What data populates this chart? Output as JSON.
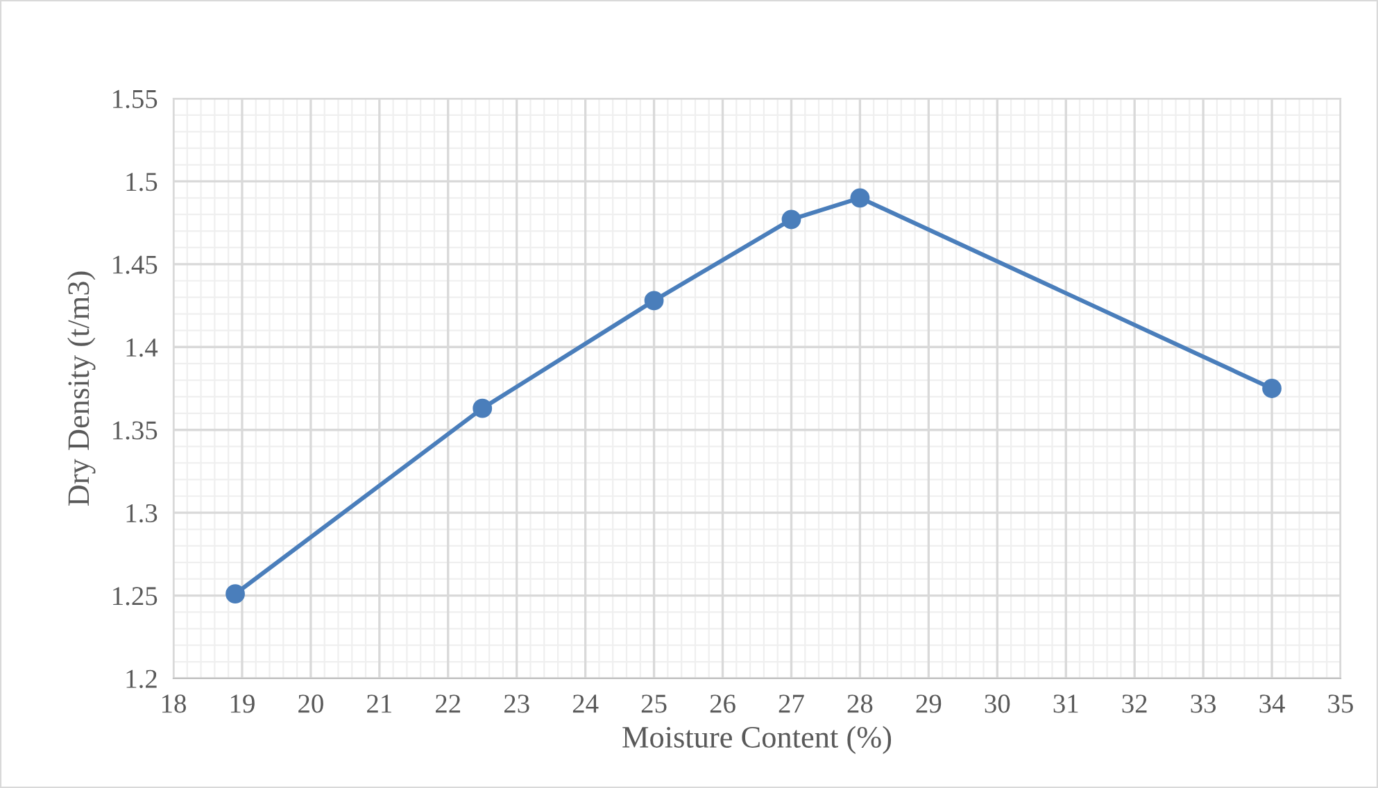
{
  "chart_data": {
    "type": "line",
    "xlabel": "Moisture Content (%)",
    "ylabel": "Dry Density (t/m3)",
    "x": [
      18.9,
      22.5,
      25,
      27,
      28,
      34
    ],
    "series": [
      {
        "color": "#4a7ebb",
        "values": [
          1.251,
          1.363,
          1.428,
          1.477,
          1.49,
          1.375
        ]
      }
    ],
    "xlim": [
      18,
      35
    ],
    "xticks": [
      18,
      19,
      20,
      21,
      22,
      23,
      24,
      25,
      26,
      27,
      28,
      29,
      30,
      31,
      32,
      33,
      34,
      35
    ],
    "ylim": [
      1.2,
      1.55
    ],
    "yticks": [
      1.2,
      1.25,
      1.3,
      1.35,
      1.4,
      1.45,
      1.5,
      1.55
    ],
    "grid": true,
    "marker": "circle",
    "line_style": "solid",
    "legend": false
  }
}
